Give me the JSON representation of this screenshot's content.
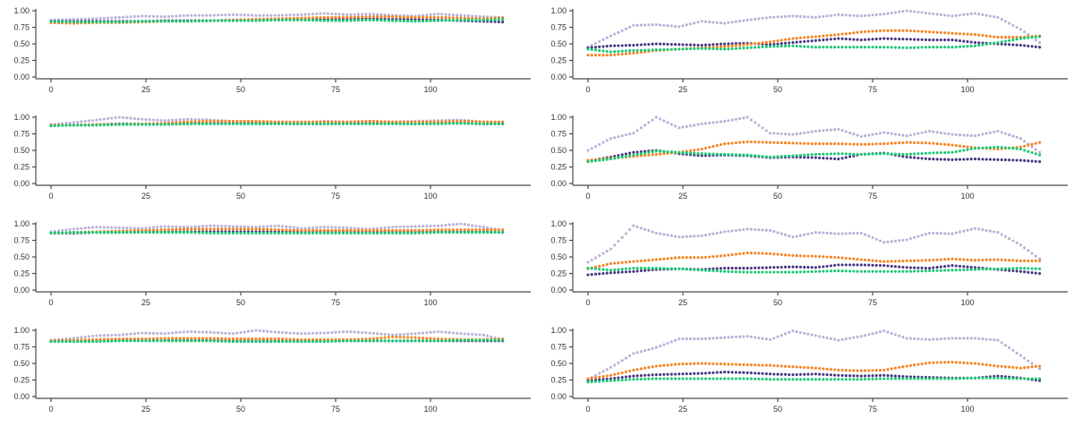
{
  "palette": {
    "lavender": "#b8b1d8",
    "orange": "#f58321",
    "purple": "#473480",
    "green": "#18c873"
  },
  "axes": {
    "y_ticks": [
      "1.00",
      "0.75",
      "0.50",
      "0.25",
      "0.00"
    ],
    "y_tick_values": [
      1.0,
      0.75,
      0.5,
      0.25,
      0.0
    ],
    "x_ticks": [
      "0",
      "25",
      "50",
      "75",
      "100"
    ],
    "x_tick_values": [
      0,
      25,
      50,
      75,
      100
    ],
    "x_range": [
      0,
      119
    ],
    "y_range": [
      0,
      1
    ],
    "grid": "off",
    "legend": "none"
  },
  "chart_data": {
    "type": "scatter",
    "point_step": 1,
    "x_waypoints": [
      0,
      6,
      12,
      18,
      24,
      30,
      36,
      42,
      48,
      54,
      60,
      66,
      72,
      78,
      84,
      90,
      96,
      102,
      108,
      114,
      119
    ],
    "panels": [
      {
        "id": "row1-left",
        "series": [
          {
            "name": "lavender",
            "y": [
              0.86,
              0.87,
              0.88,
              0.9,
              0.92,
              0.91,
              0.93,
              0.93,
              0.94,
              0.93,
              0.93,
              0.94,
              0.96,
              0.94,
              0.95,
              0.93,
              0.92,
              0.95,
              0.93,
              0.91,
              0.9
            ]
          },
          {
            "name": "purple",
            "y": [
              0.84,
              0.84,
              0.84,
              0.84,
              0.84,
              0.85,
              0.85,
              0.85,
              0.86,
              0.86,
              0.87,
              0.87,
              0.87,
              0.88,
              0.88,
              0.87,
              0.87,
              0.86,
              0.85,
              0.84,
              0.83
            ]
          },
          {
            "name": "orange",
            "y": [
              0.82,
              0.81,
              0.82,
              0.82,
              0.83,
              0.84,
              0.84,
              0.85,
              0.86,
              0.87,
              0.88,
              0.89,
              0.9,
              0.9,
              0.91,
              0.91,
              0.9,
              0.9,
              0.89,
              0.88,
              0.89
            ]
          },
          {
            "name": "green",
            "y": [
              0.84,
              0.83,
              0.83,
              0.83,
              0.84,
              0.84,
              0.84,
              0.85,
              0.85,
              0.85,
              0.86,
              0.86,
              0.85,
              0.85,
              0.86,
              0.85,
              0.84,
              0.85,
              0.86,
              0.86,
              0.87
            ]
          }
        ]
      },
      {
        "id": "row1-right",
        "series": [
          {
            "name": "lavender",
            "y": [
              0.45,
              0.62,
              0.78,
              0.79,
              0.76,
              0.84,
              0.81,
              0.86,
              0.9,
              0.92,
              0.9,
              0.94,
              0.92,
              0.95,
              1.0,
              0.96,
              0.92,
              0.96,
              0.9,
              0.72,
              0.52
            ]
          },
          {
            "name": "purple",
            "y": [
              0.44,
              0.47,
              0.48,
              0.5,
              0.49,
              0.48,
              0.5,
              0.51,
              0.49,
              0.52,
              0.55,
              0.58,
              0.56,
              0.58,
              0.57,
              0.56,
              0.56,
              0.52,
              0.5,
              0.48,
              0.45
            ]
          },
          {
            "name": "orange",
            "y": [
              0.33,
              0.33,
              0.36,
              0.4,
              0.42,
              0.44,
              0.46,
              0.49,
              0.53,
              0.58,
              0.61,
              0.64,
              0.68,
              0.7,
              0.7,
              0.68,
              0.66,
              0.64,
              0.6,
              0.6,
              0.62
            ]
          },
          {
            "name": "green",
            "y": [
              0.42,
              0.38,
              0.4,
              0.41,
              0.42,
              0.43,
              0.42,
              0.44,
              0.46,
              0.47,
              0.45,
              0.45,
              0.45,
              0.45,
              0.44,
              0.45,
              0.45,
              0.47,
              0.52,
              0.58,
              0.61
            ]
          }
        ]
      },
      {
        "id": "row2-left",
        "series": [
          {
            "name": "lavender",
            "y": [
              0.89,
              0.92,
              0.96,
              1.0,
              0.97,
              0.95,
              0.97,
              0.96,
              0.94,
              0.93,
              0.93,
              0.92,
              0.94,
              0.93,
              0.94,
              0.93,
              0.94,
              0.95,
              0.96,
              0.93,
              0.92
            ]
          },
          {
            "name": "purple",
            "y": [
              0.88,
              0.88,
              0.89,
              0.9,
              0.9,
              0.9,
              0.91,
              0.91,
              0.91,
              0.91,
              0.91,
              0.9,
              0.9,
              0.91,
              0.91,
              0.91,
              0.9,
              0.91,
              0.91,
              0.9,
              0.9
            ]
          },
          {
            "name": "orange",
            "y": [
              0.88,
              0.88,
              0.89,
              0.89,
              0.9,
              0.91,
              0.93,
              0.94,
              0.94,
              0.94,
              0.93,
              0.93,
              0.93,
              0.93,
              0.94,
              0.93,
              0.93,
              0.93,
              0.94,
              0.93,
              0.93
            ]
          },
          {
            "name": "green",
            "y": [
              0.87,
              0.88,
              0.88,
              0.89,
              0.89,
              0.89,
              0.9,
              0.9,
              0.9,
              0.9,
              0.9,
              0.9,
              0.9,
              0.9,
              0.9,
              0.9,
              0.9,
              0.9,
              0.91,
              0.9,
              0.9
            ]
          }
        ]
      },
      {
        "id": "row2-right",
        "series": [
          {
            "name": "lavender",
            "y": [
              0.5,
              0.68,
              0.76,
              1.0,
              0.84,
              0.9,
              0.94,
              1.0,
              0.76,
              0.74,
              0.79,
              0.82,
              0.71,
              0.77,
              0.72,
              0.79,
              0.74,
              0.72,
              0.79,
              0.68,
              0.47
            ]
          },
          {
            "name": "purple",
            "y": [
              0.34,
              0.4,
              0.47,
              0.5,
              0.45,
              0.42,
              0.43,
              0.42,
              0.39,
              0.4,
              0.39,
              0.37,
              0.44,
              0.46,
              0.4,
              0.37,
              0.36,
              0.37,
              0.36,
              0.35,
              0.33
            ]
          },
          {
            "name": "orange",
            "y": [
              0.35,
              0.38,
              0.41,
              0.44,
              0.47,
              0.52,
              0.6,
              0.63,
              0.62,
              0.61,
              0.6,
              0.6,
              0.59,
              0.6,
              0.62,
              0.61,
              0.58,
              0.54,
              0.52,
              0.55,
              0.62
            ]
          },
          {
            "name": "green",
            "y": [
              0.33,
              0.37,
              0.43,
              0.49,
              0.47,
              0.45,
              0.44,
              0.43,
              0.4,
              0.42,
              0.44,
              0.45,
              0.44,
              0.45,
              0.44,
              0.46,
              0.47,
              0.53,
              0.55,
              0.52,
              0.43
            ]
          }
        ]
      },
      {
        "id": "row3-left",
        "series": [
          {
            "name": "lavender",
            "y": [
              0.88,
              0.92,
              0.95,
              0.94,
              0.93,
              0.96,
              0.95,
              0.97,
              0.96,
              0.95,
              0.97,
              0.93,
              0.95,
              0.94,
              0.92,
              0.95,
              0.96,
              0.97,
              1.0,
              0.95,
              0.9
            ]
          },
          {
            "name": "purple",
            "y": [
              0.86,
              0.86,
              0.87,
              0.87,
              0.88,
              0.88,
              0.88,
              0.88,
              0.88,
              0.88,
              0.88,
              0.88,
              0.88,
              0.88,
              0.88,
              0.88,
              0.88,
              0.88,
              0.88,
              0.88,
              0.87
            ]
          },
          {
            "name": "orange",
            "y": [
              0.86,
              0.87,
              0.88,
              0.89,
              0.9,
              0.91,
              0.92,
              0.92,
              0.92,
              0.92,
              0.91,
              0.9,
              0.9,
              0.9,
              0.9,
              0.9,
              0.9,
              0.91,
              0.91,
              0.91,
              0.91
            ]
          },
          {
            "name": "green",
            "y": [
              0.86,
              0.87,
              0.87,
              0.87,
              0.87,
              0.87,
              0.87,
              0.86,
              0.86,
              0.86,
              0.86,
              0.86,
              0.86,
              0.86,
              0.86,
              0.86,
              0.86,
              0.87,
              0.87,
              0.87,
              0.87
            ]
          }
        ]
      },
      {
        "id": "row3-right",
        "series": [
          {
            "name": "lavender",
            "y": [
              0.42,
              0.62,
              0.97,
              0.86,
              0.8,
              0.82,
              0.88,
              0.92,
              0.9,
              0.8,
              0.87,
              0.85,
              0.86,
              0.72,
              0.76,
              0.86,
              0.85,
              0.93,
              0.87,
              0.68,
              0.47
            ]
          },
          {
            "name": "purple",
            "y": [
              0.23,
              0.26,
              0.28,
              0.31,
              0.32,
              0.31,
              0.33,
              0.33,
              0.34,
              0.35,
              0.34,
              0.38,
              0.38,
              0.37,
              0.34,
              0.33,
              0.37,
              0.34,
              0.31,
              0.28,
              0.25
            ]
          },
          {
            "name": "orange",
            "y": [
              0.32,
              0.4,
              0.43,
              0.46,
              0.49,
              0.49,
              0.52,
              0.56,
              0.55,
              0.52,
              0.51,
              0.49,
              0.46,
              0.43,
              0.44,
              0.45,
              0.47,
              0.45,
              0.46,
              0.44,
              0.44
            ]
          },
          {
            "name": "green",
            "y": [
              0.33,
              0.3,
              0.33,
              0.33,
              0.32,
              0.3,
              0.28,
              0.27,
              0.27,
              0.27,
              0.28,
              0.29,
              0.28,
              0.28,
              0.28,
              0.29,
              0.3,
              0.31,
              0.32,
              0.33,
              0.32
            ]
          }
        ]
      },
      {
        "id": "row4-left",
        "series": [
          {
            "name": "lavender",
            "y": [
              0.85,
              0.88,
              0.92,
              0.93,
              0.96,
              0.95,
              0.98,
              0.97,
              0.95,
              1.0,
              0.97,
              0.95,
              0.96,
              0.98,
              0.96,
              0.93,
              0.95,
              0.98,
              0.95,
              0.93,
              0.86
            ]
          },
          {
            "name": "purple",
            "y": [
              0.84,
              0.84,
              0.84,
              0.85,
              0.85,
              0.85,
              0.85,
              0.85,
              0.84,
              0.84,
              0.84,
              0.84,
              0.84,
              0.84,
              0.84,
              0.84,
              0.84,
              0.84,
              0.84,
              0.84,
              0.84
            ]
          },
          {
            "name": "orange",
            "y": [
              0.84,
              0.85,
              0.86,
              0.87,
              0.87,
              0.88,
              0.88,
              0.88,
              0.87,
              0.87,
              0.87,
              0.86,
              0.86,
              0.86,
              0.87,
              0.9,
              0.89,
              0.87,
              0.86,
              0.86,
              0.87
            ]
          },
          {
            "name": "green",
            "y": [
              0.83,
              0.83,
              0.83,
              0.84,
              0.84,
              0.84,
              0.84,
              0.84,
              0.83,
              0.83,
              0.83,
              0.83,
              0.83,
              0.84,
              0.84,
              0.84,
              0.84,
              0.84,
              0.85,
              0.85,
              0.85
            ]
          }
        ]
      },
      {
        "id": "row4-right",
        "series": [
          {
            "name": "lavender",
            "y": [
              0.26,
              0.44,
              0.65,
              0.74,
              0.87,
              0.87,
              0.89,
              0.91,
              0.86,
              0.99,
              0.92,
              0.85,
              0.91,
              0.99,
              0.88,
              0.86,
              0.88,
              0.88,
              0.85,
              0.62,
              0.42
            ]
          },
          {
            "name": "purple",
            "y": [
              0.24,
              0.27,
              0.31,
              0.33,
              0.34,
              0.35,
              0.37,
              0.36,
              0.34,
              0.33,
              0.34,
              0.32,
              0.31,
              0.32,
              0.3,
              0.29,
              0.28,
              0.28,
              0.31,
              0.28,
              0.24
            ]
          },
          {
            "name": "orange",
            "y": [
              0.27,
              0.32,
              0.4,
              0.46,
              0.49,
              0.5,
              0.49,
              0.48,
              0.47,
              0.45,
              0.43,
              0.4,
              0.39,
              0.4,
              0.46,
              0.51,
              0.52,
              0.5,
              0.46,
              0.43,
              0.46
            ]
          },
          {
            "name": "green",
            "y": [
              0.22,
              0.24,
              0.26,
              0.27,
              0.27,
              0.27,
              0.27,
              0.27,
              0.26,
              0.26,
              0.26,
              0.26,
              0.26,
              0.27,
              0.27,
              0.27,
              0.27,
              0.28,
              0.28,
              0.27,
              0.27
            ]
          }
        ]
      }
    ]
  }
}
